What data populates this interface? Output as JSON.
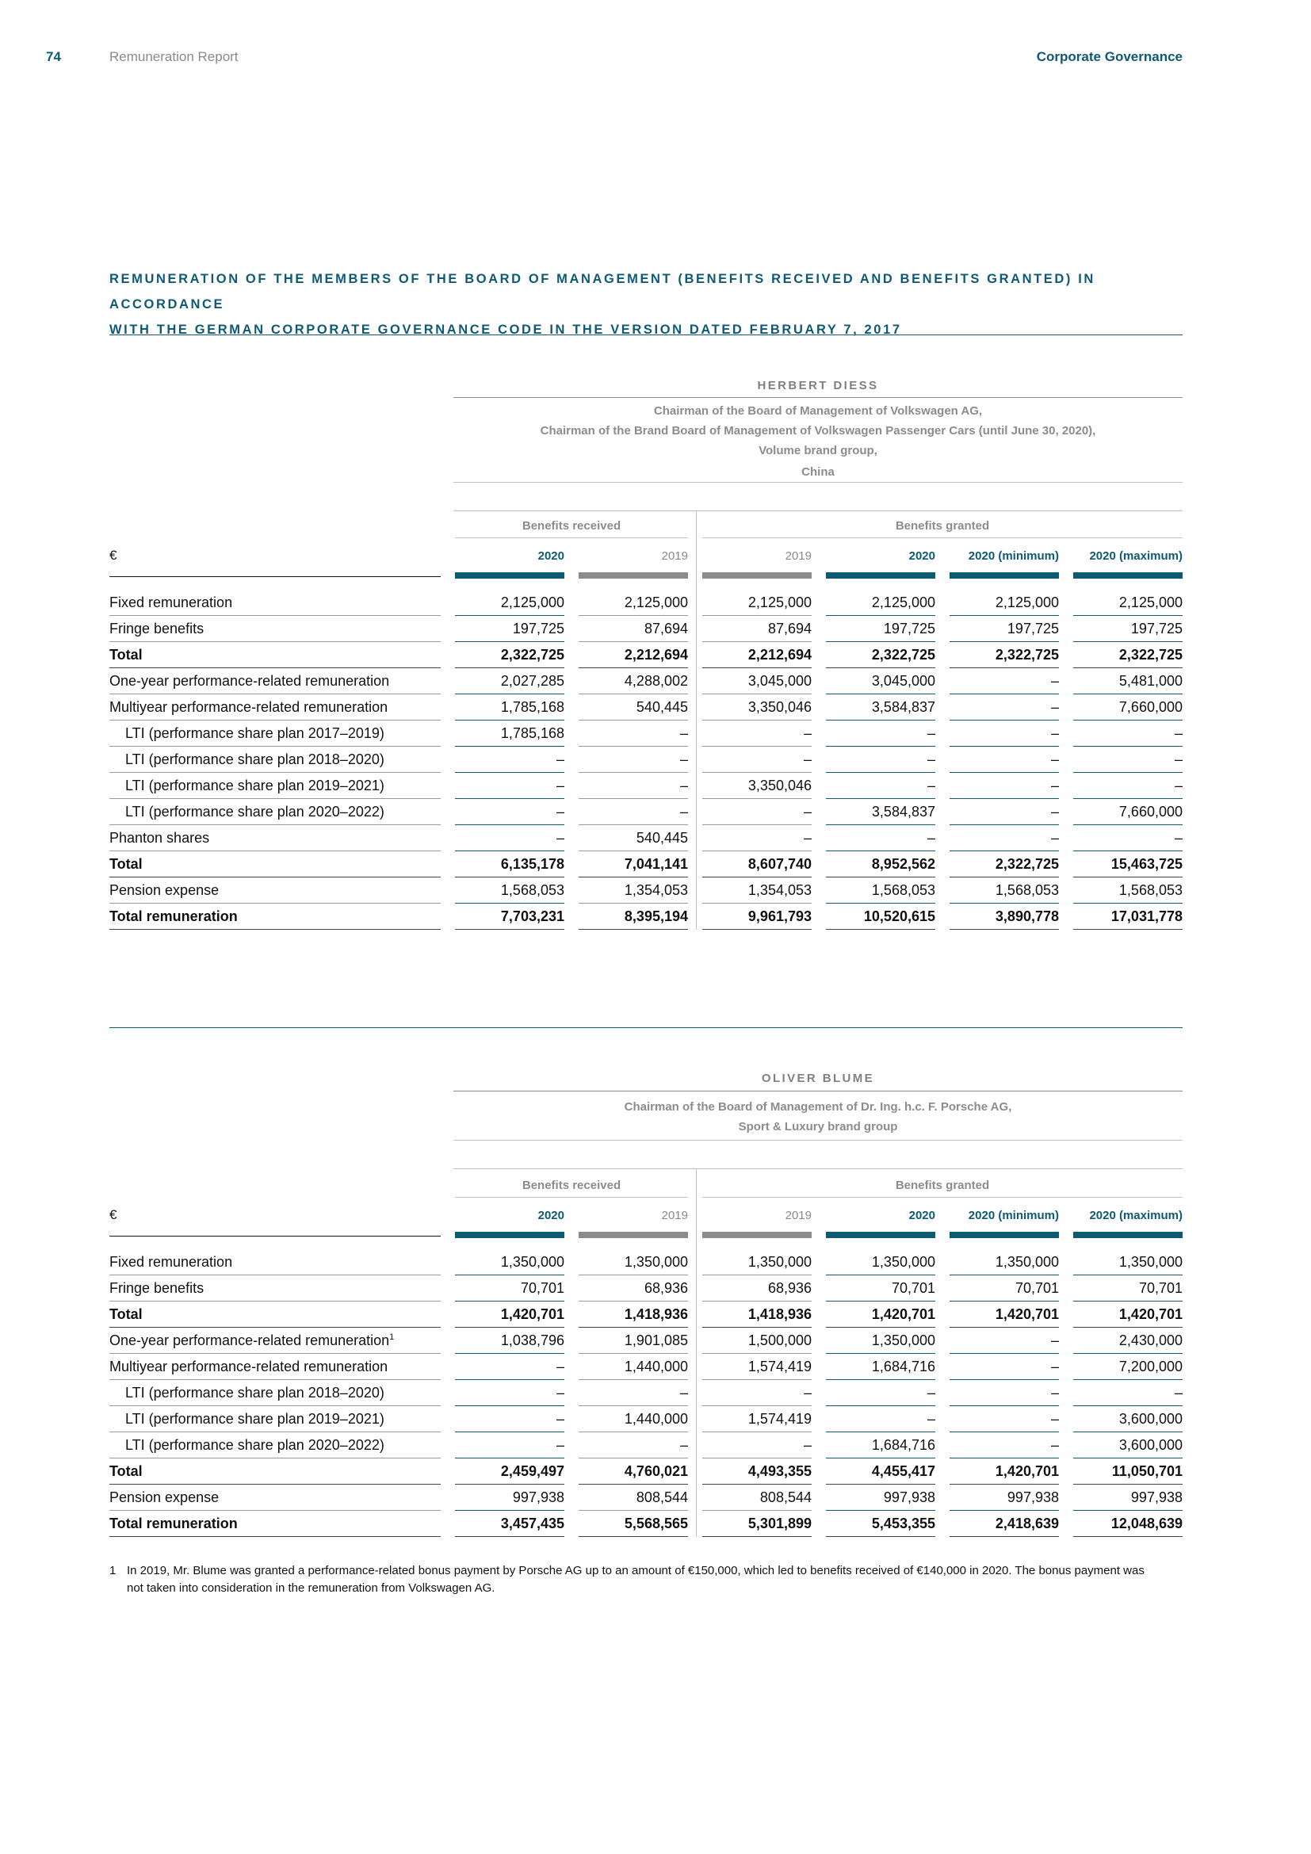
{
  "header": {
    "page_number": "74",
    "section": "Remuneration Report",
    "chapter": "Corporate Governance"
  },
  "title_lines": [
    "REMUNERATION OF THE MEMBERS OF THE BOARD OF MANAGEMENT (BENEFITS RECEIVED AND BENEFITS GRANTED) IN ACCORDANCE",
    "WITH THE GERMAN CORPORATE GOVERNANCE CODE IN THE VERSION DATED FEBRUARY 7, 2017"
  ],
  "tables": [
    {
      "person": "HERBERT DIESS",
      "roles": [
        "Chairman of the Board of Management of Volkswagen AG,",
        "Chairman of the Brand Board of Management of Volkswagen Passenger Cars (until June 30, 2020),",
        "Volume brand group,",
        "China"
      ],
      "group_received": "Benefits received",
      "group_granted": "Benefits granted",
      "currency": "€",
      "columns": [
        "2020",
        "2019",
        "2019",
        "2020",
        "2020 (minimum)",
        "2020 (maximum)"
      ],
      "rows": [
        {
          "label": "Fixed remuneration",
          "bold": false,
          "indent": false,
          "values": [
            "2,125,000",
            "2,125,000",
            "2,125,000",
            "2,125,000",
            "2,125,000",
            "2,125,000"
          ]
        },
        {
          "label": "Fringe benefits",
          "bold": false,
          "indent": false,
          "values": [
            "197,725",
            "87,694",
            "87,694",
            "197,725",
            "197,725",
            "197,725"
          ]
        },
        {
          "label": "Total",
          "bold": true,
          "indent": false,
          "values": [
            "2,322,725",
            "2,212,694",
            "2,212,694",
            "2,322,725",
            "2,322,725",
            "2,322,725"
          ]
        },
        {
          "label": "One-year performance-related remuneration",
          "bold": false,
          "indent": false,
          "values": [
            "2,027,285",
            "4,288,002",
            "3,045,000",
            "3,045,000",
            "–",
            "5,481,000"
          ]
        },
        {
          "label": "Multiyear performance-related remuneration",
          "bold": false,
          "indent": false,
          "values": [
            "1,785,168",
            "540,445",
            "3,350,046",
            "3,584,837",
            "–",
            "7,660,000"
          ]
        },
        {
          "label": "LTI (performance share plan 2017–2019)",
          "bold": false,
          "indent": true,
          "values": [
            "1,785,168",
            "–",
            "–",
            "–",
            "–",
            "–"
          ]
        },
        {
          "label": "LTI (performance share plan 2018–2020)",
          "bold": false,
          "indent": true,
          "values": [
            "–",
            "–",
            "–",
            "–",
            "–",
            "–"
          ]
        },
        {
          "label": "LTI (performance share plan 2019–2021)",
          "bold": false,
          "indent": true,
          "values": [
            "–",
            "–",
            "3,350,046",
            "–",
            "–",
            "–"
          ]
        },
        {
          "label": "LTI (performance share plan 2020–2022)",
          "bold": false,
          "indent": true,
          "values": [
            "–",
            "–",
            "–",
            "3,584,837",
            "–",
            "7,660,000"
          ]
        },
        {
          "label": "Phanton shares",
          "bold": false,
          "indent": false,
          "values": [
            "–",
            "540,445",
            "–",
            "–",
            "–",
            "–"
          ]
        },
        {
          "label": "Total",
          "bold": true,
          "indent": false,
          "values": [
            "6,135,178",
            "7,041,141",
            "8,607,740",
            "8,952,562",
            "2,322,725",
            "15,463,725"
          ]
        },
        {
          "label": "Pension expense",
          "bold": false,
          "indent": false,
          "values": [
            "1,568,053",
            "1,354,053",
            "1,354,053",
            "1,568,053",
            "1,568,053",
            "1,568,053"
          ]
        },
        {
          "label": "Total remuneration",
          "bold": true,
          "indent": false,
          "values": [
            "7,703,231",
            "8,395,194",
            "9,961,793",
            "10,520,615",
            "3,890,778",
            "17,031,778"
          ]
        }
      ]
    },
    {
      "person": "OLIVER BLUME",
      "roles": [
        "Chairman of the Board of Management of Dr. Ing. h.c. F. Porsche AG,",
        "Sport & Luxury brand group"
      ],
      "group_received": "Benefits received",
      "group_granted": "Benefits granted",
      "currency": "€",
      "columns": [
        "2020",
        "2019",
        "2019",
        "2020",
        "2020 (minimum)",
        "2020 (maximum)"
      ],
      "rows": [
        {
          "label": "Fixed remuneration",
          "bold": false,
          "indent": false,
          "values": [
            "1,350,000",
            "1,350,000",
            "1,350,000",
            "1,350,000",
            "1,350,000",
            "1,350,000"
          ]
        },
        {
          "label": "Fringe benefits",
          "bold": false,
          "indent": false,
          "values": [
            "70,701",
            "68,936",
            "68,936",
            "70,701",
            "70,701",
            "70,701"
          ]
        },
        {
          "label": "Total",
          "bold": true,
          "indent": false,
          "values": [
            "1,420,701",
            "1,418,936",
            "1,418,936",
            "1,420,701",
            "1,420,701",
            "1,420,701"
          ]
        },
        {
          "label": "One-year performance-related remuneration",
          "sup": "1",
          "bold": false,
          "indent": false,
          "values": [
            "1,038,796",
            "1,901,085",
            "1,500,000",
            "1,350,000",
            "–",
            "2,430,000"
          ]
        },
        {
          "label": "Multiyear performance-related remuneration",
          "bold": false,
          "indent": false,
          "values": [
            "–",
            "1,440,000",
            "1,574,419",
            "1,684,716",
            "–",
            "7,200,000"
          ]
        },
        {
          "label": "LTI (performance share plan 2018–2020)",
          "bold": false,
          "indent": true,
          "values": [
            "–",
            "–",
            "–",
            "–",
            "–",
            "–"
          ]
        },
        {
          "label": "LTI (performance share plan 2019–2021)",
          "bold": false,
          "indent": true,
          "values": [
            "–",
            "1,440,000",
            "1,574,419",
            "–",
            "–",
            "3,600,000"
          ]
        },
        {
          "label": "LTI (performance share plan 2020–2022)",
          "bold": false,
          "indent": true,
          "values": [
            "–",
            "–",
            "–",
            "1,684,716",
            "–",
            "3,600,000"
          ]
        },
        {
          "label": "Total",
          "bold": true,
          "indent": false,
          "values": [
            "2,459,497",
            "4,760,021",
            "4,493,355",
            "4,455,417",
            "1,420,701",
            "11,050,701"
          ]
        },
        {
          "label": "Pension expense",
          "bold": false,
          "indent": false,
          "values": [
            "997,938",
            "808,544",
            "808,544",
            "997,938",
            "997,938",
            "997,938"
          ]
        },
        {
          "label": "Total remuneration",
          "bold": true,
          "indent": false,
          "values": [
            "3,457,435",
            "5,568,565",
            "5,301,899",
            "5,453,355",
            "2,418,639",
            "12,048,639"
          ]
        }
      ]
    }
  ],
  "footnote": {
    "number": "1",
    "text": "In 2019, Mr. Blume was granted a performance-related bonus payment by Porsche AG up to an amount of €150,000, which led to benefits received of €140,000 in 2020. The bonus payment was not taken into consideration in the remuneration from Volkswagen AG."
  },
  "colors": {
    "accent": "#0e5a74",
    "muted": "#8c8c8c"
  }
}
